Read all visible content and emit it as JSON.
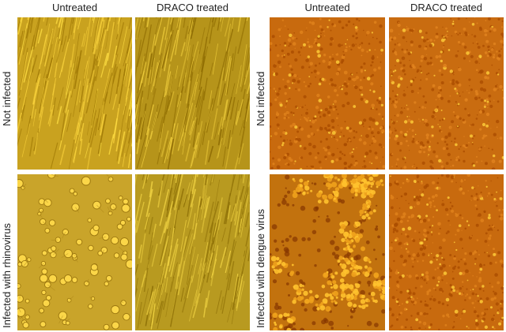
{
  "left_figure": {
    "column_headers": [
      "Untreated",
      "DRACO treated"
    ],
    "row_labels": [
      "Not infected",
      "Infected with rhinovirus"
    ],
    "panels": [
      {
        "name": "not-infected-untreated",
        "texture": "fibroblast-streaks",
        "base_color": "#c9a21f"
      },
      {
        "name": "not-infected-draco",
        "texture": "fibroblast-streaks",
        "base_color": "#b6941a"
      },
      {
        "name": "rhinovirus-untreated",
        "texture": "rounded-cells",
        "base_color": "#c9a42a"
      },
      {
        "name": "rhinovirus-draco",
        "texture": "fibroblast-streaks",
        "base_color": "#b89a20"
      }
    ]
  },
  "right_figure": {
    "column_headers": [
      "Untreated",
      "DRACO treated"
    ],
    "row_labels": [
      "Not infected",
      "Infected with dengue virus"
    ],
    "panels": [
      {
        "name": "not-infected-untreated",
        "texture": "dense-granular",
        "base_color": "#c86a0e"
      },
      {
        "name": "not-infected-draco",
        "texture": "dense-granular",
        "base_color": "#c96c10"
      },
      {
        "name": "dengue-untreated",
        "texture": "clustered-cells",
        "base_color": "#c2720e"
      },
      {
        "name": "dengue-draco",
        "texture": "dense-granular",
        "base_color": "#c86a0e"
      }
    ]
  }
}
